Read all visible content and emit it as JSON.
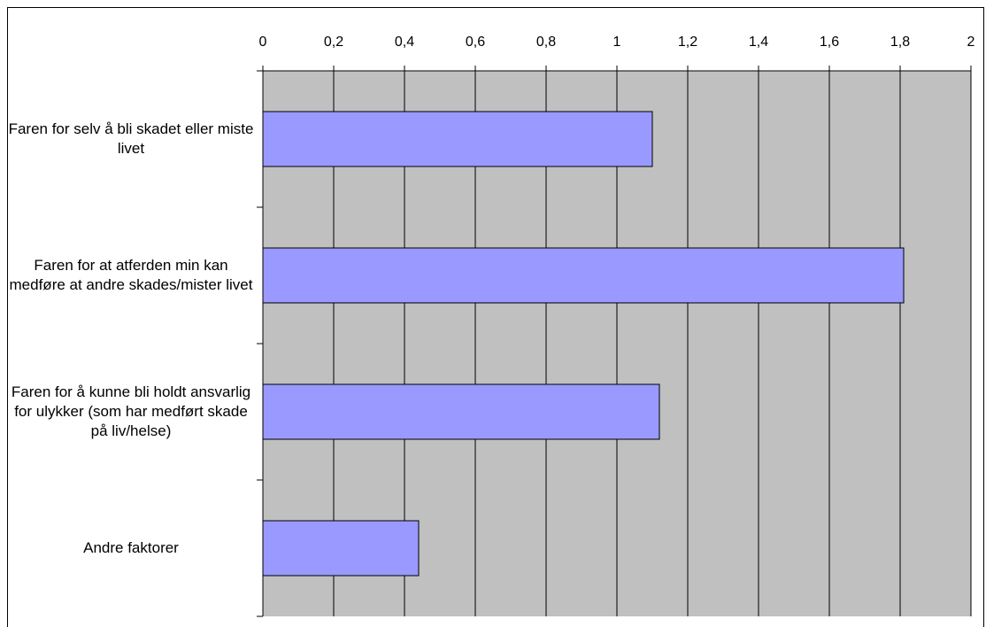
{
  "chart_data": {
    "type": "bar",
    "orientation": "horizontal",
    "title": "",
    "xlabel": "",
    "ylabel": "",
    "categories": [
      "Faren for selv å bli skadet eller miste livet",
      "Faren for at atferden min kan medføre at andre skades/mister livet",
      "Faren for å kunne bli holdt ansvarlig for ulykker (som har medført skade på liv/helse)",
      "Andre faktorer"
    ],
    "values": [
      1.1,
      1.81,
      1.12,
      0.44
    ],
    "xlim": [
      0,
      2
    ],
    "xticks": [
      "0",
      "0,2",
      "0,4",
      "0,6",
      "0,8",
      "1",
      "1,2",
      "1,4",
      "1,6",
      "1,8",
      "2"
    ],
    "grid": true,
    "legend": "none",
    "axis_position": "top",
    "colors": {
      "bar_fill": "#9999ff",
      "plot_background": "#c0c0c0",
      "gridline": "#000000"
    }
  }
}
